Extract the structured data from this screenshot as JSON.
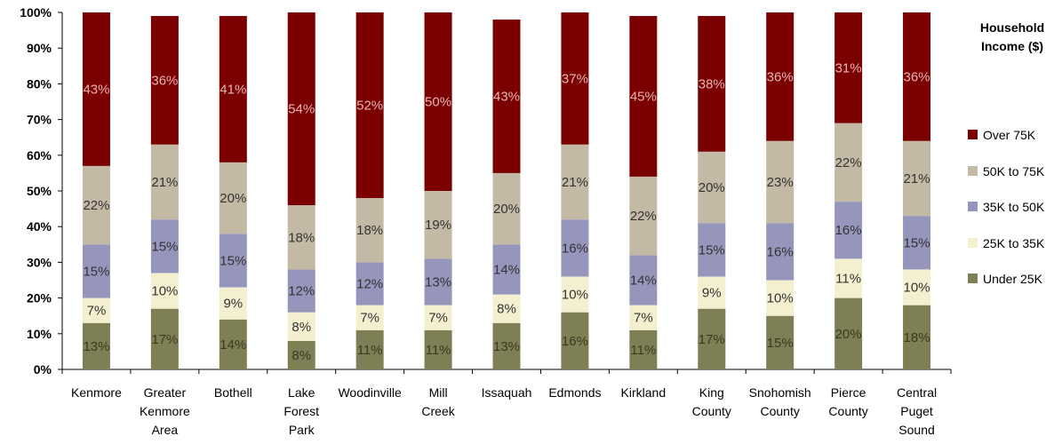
{
  "chart_data": {
    "type": "bar",
    "stacked": true,
    "categories": [
      [
        "Kenmore"
      ],
      [
        "Greater",
        "Kenmore",
        "Area"
      ],
      [
        "Bothell"
      ],
      [
        "Lake",
        "Forest",
        "Park"
      ],
      [
        "Woodinville"
      ],
      [
        "Mill",
        "Creek"
      ],
      [
        "Issaquah"
      ],
      [
        "Edmonds"
      ],
      [
        "Kirkland"
      ],
      [
        "King",
        "County"
      ],
      [
        "Snohomish",
        "County"
      ],
      [
        "Pierce",
        "County"
      ],
      [
        "Central",
        "Puget",
        "Sound"
      ]
    ],
    "series": [
      {
        "name": "Under 25K",
        "color": "#7f7f55",
        "labelColor": "#3a3a20",
        "values": [
          13,
          17,
          14,
          8,
          11,
          11,
          13,
          16,
          11,
          17,
          15,
          20,
          18
        ],
        "labels": [
          "13%",
          "17%",
          "14%",
          "8%",
          "11%",
          "11%",
          "13%",
          "16%",
          "11%",
          "17%",
          "15%",
          "20%",
          "18%"
        ]
      },
      {
        "name": "25K to 35K",
        "color": "#f4f0cf",
        "labelColor": "#333333",
        "values": [
          7,
          10,
          9,
          8,
          7,
          7,
          8,
          10,
          7,
          9,
          10,
          11,
          10
        ],
        "labels": [
          "7%",
          "10%",
          "9%",
          "8%",
          "7%",
          "7%",
          "8%",
          "10%",
          "7%",
          "9%",
          "10%",
          "11%",
          "10%"
        ]
      },
      {
        "name": "35K to 50K",
        "color": "#9696bc",
        "labelColor": "#333333",
        "values": [
          15,
          15,
          15,
          12,
          12,
          13,
          14,
          16,
          14,
          15,
          16,
          16,
          15
        ],
        "labels": [
          "15%",
          "15%",
          "15%",
          "12%",
          "12%",
          "13%",
          "14%",
          "16%",
          "14%",
          "15%",
          "16%",
          "16%",
          "15%"
        ]
      },
      {
        "name": "50K to 75K",
        "color": "#c4b9a5",
        "labelColor": "#333333",
        "values": [
          22,
          21,
          20,
          18,
          18,
          19,
          20,
          21,
          22,
          20,
          23,
          22,
          21
        ],
        "labels": [
          "22%",
          "21%",
          "20%",
          "18%",
          "18%",
          "19%",
          "20%",
          "21%",
          "22%",
          "20%",
          "23%",
          "22%",
          "21%"
        ]
      },
      {
        "name": "Over 75K",
        "color": "#7b0000",
        "labelColor": "#e6b4b4",
        "values": [
          43,
          36,
          41,
          54,
          52,
          50,
          43,
          37,
          45,
          38,
          36,
          31,
          36
        ],
        "labels": [
          "43%",
          "36%",
          "41%",
          "54%",
          "52%",
          "50%",
          "43%",
          "37%",
          "45%",
          "38%",
          "36%",
          "31%",
          "36%"
        ]
      }
    ],
    "yticks": [
      "0%",
      "10%",
      "20%",
      "30%",
      "40%",
      "50%",
      "60%",
      "70%",
      "80%",
      "90%",
      "100%"
    ],
    "ylim": [
      0,
      100
    ],
    "legend": {
      "title": [
        "Household",
        "Income ($)"
      ],
      "placement": "right",
      "order": [
        "Over 75K",
        "50K to 75K",
        "35K to 50K",
        "25K to 35K",
        "Under 25K"
      ]
    },
    "grid": false
  }
}
